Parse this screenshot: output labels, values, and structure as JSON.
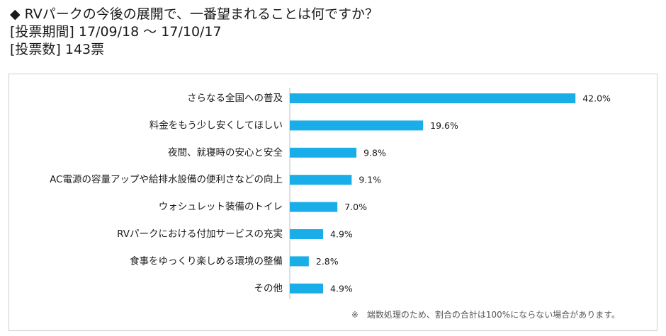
{
  "header": {
    "marker": "◆",
    "question": "RVパークの今後の展開で、一番望まれることは何ですか？",
    "period": "[投票期間] 17/09/18 ～ 17/10/17",
    "votes": "[投票数] 143票"
  },
  "footnote": "※　端数処理のため、割合の合計は100%にならない場合があります。",
  "chart_data": {
    "type": "bar",
    "orientation": "horizontal",
    "categories": [
      "さらなる全国への普及",
      "料金をもう少し安くしてほしい",
      "夜間、就寝時の安心と安全",
      "AC電源の容量アップや給排水設備の便利さなどの向上",
      "ウォシュレット装備のトイレ",
      "RVパークにおける付加サービスの充実",
      "食事をゆっくり楽しめる環境の整備",
      "その他"
    ],
    "values": [
      42.0,
      19.6,
      9.8,
      9.1,
      7.0,
      4.9,
      2.8,
      4.9
    ],
    "value_labels": [
      "42.0%",
      "19.6%",
      "9.8%",
      "9.1%",
      "7.0%",
      "4.9%",
      "2.8%",
      "4.9%"
    ],
    "unit": "%",
    "xlim": [
      0,
      45
    ],
    "grid": false,
    "legend": "none",
    "bar_color": "#1aaee8"
  }
}
